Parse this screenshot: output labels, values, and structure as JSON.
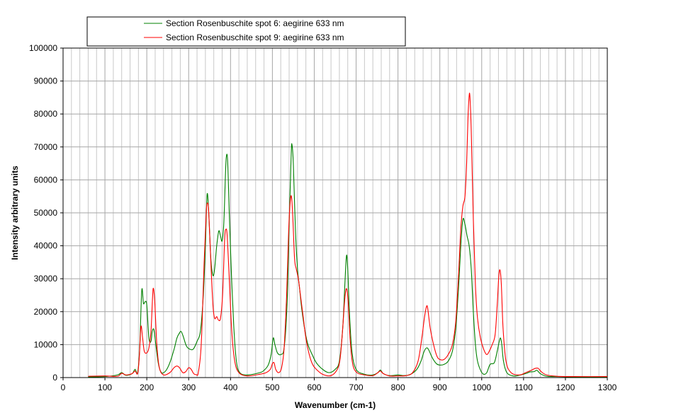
{
  "chart_data": {
    "type": "line",
    "title": "",
    "xlabel": "Wavenumber (cm-1)",
    "ylabel": "Intensity  arbitrary units",
    "xlim": [
      0,
      1300
    ],
    "ylim": [
      0,
      100000
    ],
    "x_ticks": [
      0,
      100,
      200,
      300,
      400,
      500,
      600,
      700,
      800,
      900,
      1000,
      1100,
      1200,
      1300
    ],
    "y_ticks": [
      0,
      10000,
      20000,
      30000,
      40000,
      50000,
      60000,
      70000,
      80000,
      90000,
      100000
    ],
    "grid": true,
    "legend_position": "top",
    "series": [
      {
        "name": "Section Rosenbuschite spot 6: aegirine 633 nm",
        "color": "#008000",
        "points": [
          [
            60,
            200
          ],
          [
            100,
            300
          ],
          [
            130,
            800
          ],
          [
            140,
            1500
          ],
          [
            150,
            700
          ],
          [
            165,
            1200
          ],
          [
            172,
            2500
          ],
          [
            178,
            1500
          ],
          [
            183,
            9000
          ],
          [
            188,
            26500
          ],
          [
            192,
            22500
          ],
          [
            196,
            23000
          ],
          [
            200,
            22000
          ],
          [
            205,
            12000
          ],
          [
            210,
            11000
          ],
          [
            213,
            14000
          ],
          [
            217,
            14500
          ],
          [
            222,
            9500
          ],
          [
            228,
            4000
          ],
          [
            235,
            1500
          ],
          [
            245,
            2000
          ],
          [
            255,
            4500
          ],
          [
            265,
            8500
          ],
          [
            272,
            12000
          ],
          [
            278,
            13500
          ],
          [
            282,
            14000
          ],
          [
            287,
            12500
          ],
          [
            295,
            9500
          ],
          [
            305,
            8500
          ],
          [
            312,
            8800
          ],
          [
            320,
            11000
          ],
          [
            328,
            14000
          ],
          [
            335,
            25000
          ],
          [
            340,
            40000
          ],
          [
            344,
            55500
          ],
          [
            348,
            50000
          ],
          [
            353,
            36000
          ],
          [
            358,
            31000
          ],
          [
            362,
            33000
          ],
          [
            367,
            40000
          ],
          [
            372,
            44500
          ],
          [
            376,
            43000
          ],
          [
            380,
            41500
          ],
          [
            384,
            47000
          ],
          [
            388,
            62000
          ],
          [
            390,
            67000
          ],
          [
            393,
            66000
          ],
          [
            397,
            50000
          ],
          [
            402,
            32000
          ],
          [
            408,
            15000
          ],
          [
            414,
            5000
          ],
          [
            422,
            1500
          ],
          [
            440,
            800
          ],
          [
            470,
            1500
          ],
          [
            480,
            2200
          ],
          [
            490,
            3800
          ],
          [
            497,
            7000
          ],
          [
            502,
            12000
          ],
          [
            506,
            10000
          ],
          [
            512,
            7500
          ],
          [
            520,
            7000
          ],
          [
            528,
            9000
          ],
          [
            535,
            22000
          ],
          [
            540,
            46000
          ],
          [
            545,
            68000
          ],
          [
            547,
            70500
          ],
          [
            550,
            65000
          ],
          [
            555,
            45000
          ],
          [
            560,
            33000
          ],
          [
            565,
            27000
          ],
          [
            570,
            21000
          ],
          [
            578,
            14000
          ],
          [
            585,
            10000
          ],
          [
            595,
            7000
          ],
          [
            605,
            4500
          ],
          [
            620,
            2500
          ],
          [
            635,
            1500
          ],
          [
            650,
            2500
          ],
          [
            660,
            5000
          ],
          [
            668,
            15000
          ],
          [
            673,
            28000
          ],
          [
            677,
            37000
          ],
          [
            680,
            33000
          ],
          [
            684,
            20000
          ],
          [
            690,
            8000
          ],
          [
            700,
            2500
          ],
          [
            720,
            1000
          ],
          [
            740,
            800
          ],
          [
            752,
            1500
          ],
          [
            758,
            2300
          ],
          [
            765,
            1200
          ],
          [
            780,
            600
          ],
          [
            800,
            800
          ],
          [
            815,
            600
          ],
          [
            830,
            1000
          ],
          [
            845,
            2500
          ],
          [
            855,
            5000
          ],
          [
            862,
            7800
          ],
          [
            868,
            9000
          ],
          [
            873,
            8500
          ],
          [
            882,
            6000
          ],
          [
            892,
            4200
          ],
          [
            900,
            3800
          ],
          [
            910,
            4000
          ],
          [
            920,
            5000
          ],
          [
            930,
            8000
          ],
          [
            938,
            15000
          ],
          [
            945,
            28000
          ],
          [
            950,
            40000
          ],
          [
            955,
            48000
          ],
          [
            960,
            46500
          ],
          [
            965,
            43000
          ],
          [
            970,
            40000
          ],
          [
            975,
            33000
          ],
          [
            980,
            20000
          ],
          [
            985,
            10000
          ],
          [
            990,
            5000
          ],
          [
            998,
            2000
          ],
          [
            1005,
            1000
          ],
          [
            1012,
            1500
          ],
          [
            1020,
            4000
          ],
          [
            1030,
            4500
          ],
          [
            1037,
            8000
          ],
          [
            1042,
            11000
          ],
          [
            1045,
            12000
          ],
          [
            1048,
            10000
          ],
          [
            1052,
            5000
          ],
          [
            1060,
            1500
          ],
          [
            1075,
            500
          ],
          [
            1090,
            700
          ],
          [
            1105,
            1200
          ],
          [
            1115,
            1700
          ],
          [
            1125,
            1800
          ],
          [
            1132,
            2200
          ],
          [
            1140,
            1200
          ],
          [
            1155,
            400
          ],
          [
            1180,
            300
          ],
          [
            1220,
            200
          ],
          [
            1300,
            200
          ]
        ]
      },
      {
        "name": "Section Rosenbuschite spot 9: aegirine 633 nm",
        "color": "#ff0000",
        "points": [
          [
            60,
            400
          ],
          [
            100,
            500
          ],
          [
            130,
            400
          ],
          [
            140,
            1300
          ],
          [
            150,
            800
          ],
          [
            165,
            1200
          ],
          [
            172,
            2000
          ],
          [
            178,
            1200
          ],
          [
            182,
            6000
          ],
          [
            186,
            15500
          ],
          [
            190,
            12000
          ],
          [
            194,
            8000
          ],
          [
            200,
            7500
          ],
          [
            205,
            9000
          ],
          [
            210,
            14000
          ],
          [
            214,
            25000
          ],
          [
            216,
            27000
          ],
          [
            219,
            23000
          ],
          [
            224,
            10000
          ],
          [
            230,
            3000
          ],
          [
            240,
            800
          ],
          [
            255,
            1500
          ],
          [
            265,
            3000
          ],
          [
            272,
            3500
          ],
          [
            278,
            3000
          ],
          [
            286,
            1500
          ],
          [
            293,
            1800
          ],
          [
            300,
            3000
          ],
          [
            306,
            2500
          ],
          [
            312,
            1200
          ],
          [
            318,
            900
          ],
          [
            323,
            1500
          ],
          [
            330,
            10000
          ],
          [
            337,
            35000
          ],
          [
            342,
            50000
          ],
          [
            345,
            53000
          ],
          [
            348,
            50000
          ],
          [
            353,
            35000
          ],
          [
            358,
            22000
          ],
          [
            362,
            18000
          ],
          [
            367,
            18500
          ],
          [
            371,
            17500
          ],
          [
            376,
            18000
          ],
          [
            381,
            25000
          ],
          [
            386,
            42000
          ],
          [
            389,
            45000
          ],
          [
            392,
            43000
          ],
          [
            397,
            30000
          ],
          [
            403,
            14000
          ],
          [
            410,
            5000
          ],
          [
            420,
            1500
          ],
          [
            440,
            500
          ],
          [
            470,
            1000
          ],
          [
            485,
            1500
          ],
          [
            495,
            2500
          ],
          [
            500,
            4200
          ],
          [
            504,
            4500
          ],
          [
            508,
            2500
          ],
          [
            515,
            1500
          ],
          [
            522,
            3000
          ],
          [
            528,
            9000
          ],
          [
            534,
            25000
          ],
          [
            539,
            45000
          ],
          [
            543,
            54000
          ],
          [
            546,
            54500
          ],
          [
            549,
            48000
          ],
          [
            553,
            36000
          ],
          [
            557,
            33000
          ],
          [
            562,
            30000
          ],
          [
            567,
            25000
          ],
          [
            574,
            18000
          ],
          [
            580,
            12000
          ],
          [
            588,
            7000
          ],
          [
            596,
            4000
          ],
          [
            605,
            2500
          ],
          [
            620,
            1000
          ],
          [
            640,
            600
          ],
          [
            655,
            2500
          ],
          [
            662,
            6000
          ],
          [
            668,
            15000
          ],
          [
            673,
            24000
          ],
          [
            677,
            27000
          ],
          [
            681,
            23000
          ],
          [
            686,
            11000
          ],
          [
            692,
            4000
          ],
          [
            702,
            1500
          ],
          [
            720,
            800
          ],
          [
            740,
            600
          ],
          [
            752,
            1500
          ],
          [
            758,
            2000
          ],
          [
            765,
            1200
          ],
          [
            780,
            500
          ],
          [
            800,
            500
          ],
          [
            820,
            600
          ],
          [
            835,
            1500
          ],
          [
            848,
            5000
          ],
          [
            857,
            12000
          ],
          [
            863,
            18000
          ],
          [
            868,
            21500
          ],
          [
            871,
            21000
          ],
          [
            877,
            15000
          ],
          [
            885,
            10000
          ],
          [
            893,
            6500
          ],
          [
            900,
            5500
          ],
          [
            910,
            5500
          ],
          [
            920,
            7000
          ],
          [
            930,
            10000
          ],
          [
            938,
            17000
          ],
          [
            945,
            32000
          ],
          [
            950,
            45000
          ],
          [
            955,
            52000
          ],
          [
            960,
            55000
          ],
          [
            964,
            65000
          ],
          [
            967,
            78000
          ],
          [
            970,
            85500
          ],
          [
            972,
            85000
          ],
          [
            975,
            75000
          ],
          [
            980,
            48000
          ],
          [
            985,
            28000
          ],
          [
            990,
            18000
          ],
          [
            997,
            12000
          ],
          [
            1005,
            8500
          ],
          [
            1012,
            7000
          ],
          [
            1018,
            8000
          ],
          [
            1025,
            10000
          ],
          [
            1032,
            13000
          ],
          [
            1037,
            22000
          ],
          [
            1041,
            31000
          ],
          [
            1044,
            32500
          ],
          [
            1047,
            28000
          ],
          [
            1051,
            15000
          ],
          [
            1058,
            5000
          ],
          [
            1070,
            1500
          ],
          [
            1090,
            800
          ],
          [
            1105,
            1500
          ],
          [
            1118,
            2200
          ],
          [
            1128,
            2800
          ],
          [
            1135,
            2800
          ],
          [
            1142,
            1800
          ],
          [
            1155,
            800
          ],
          [
            1180,
            400
          ],
          [
            1220,
            300
          ],
          [
            1300,
            300
          ]
        ]
      }
    ]
  }
}
